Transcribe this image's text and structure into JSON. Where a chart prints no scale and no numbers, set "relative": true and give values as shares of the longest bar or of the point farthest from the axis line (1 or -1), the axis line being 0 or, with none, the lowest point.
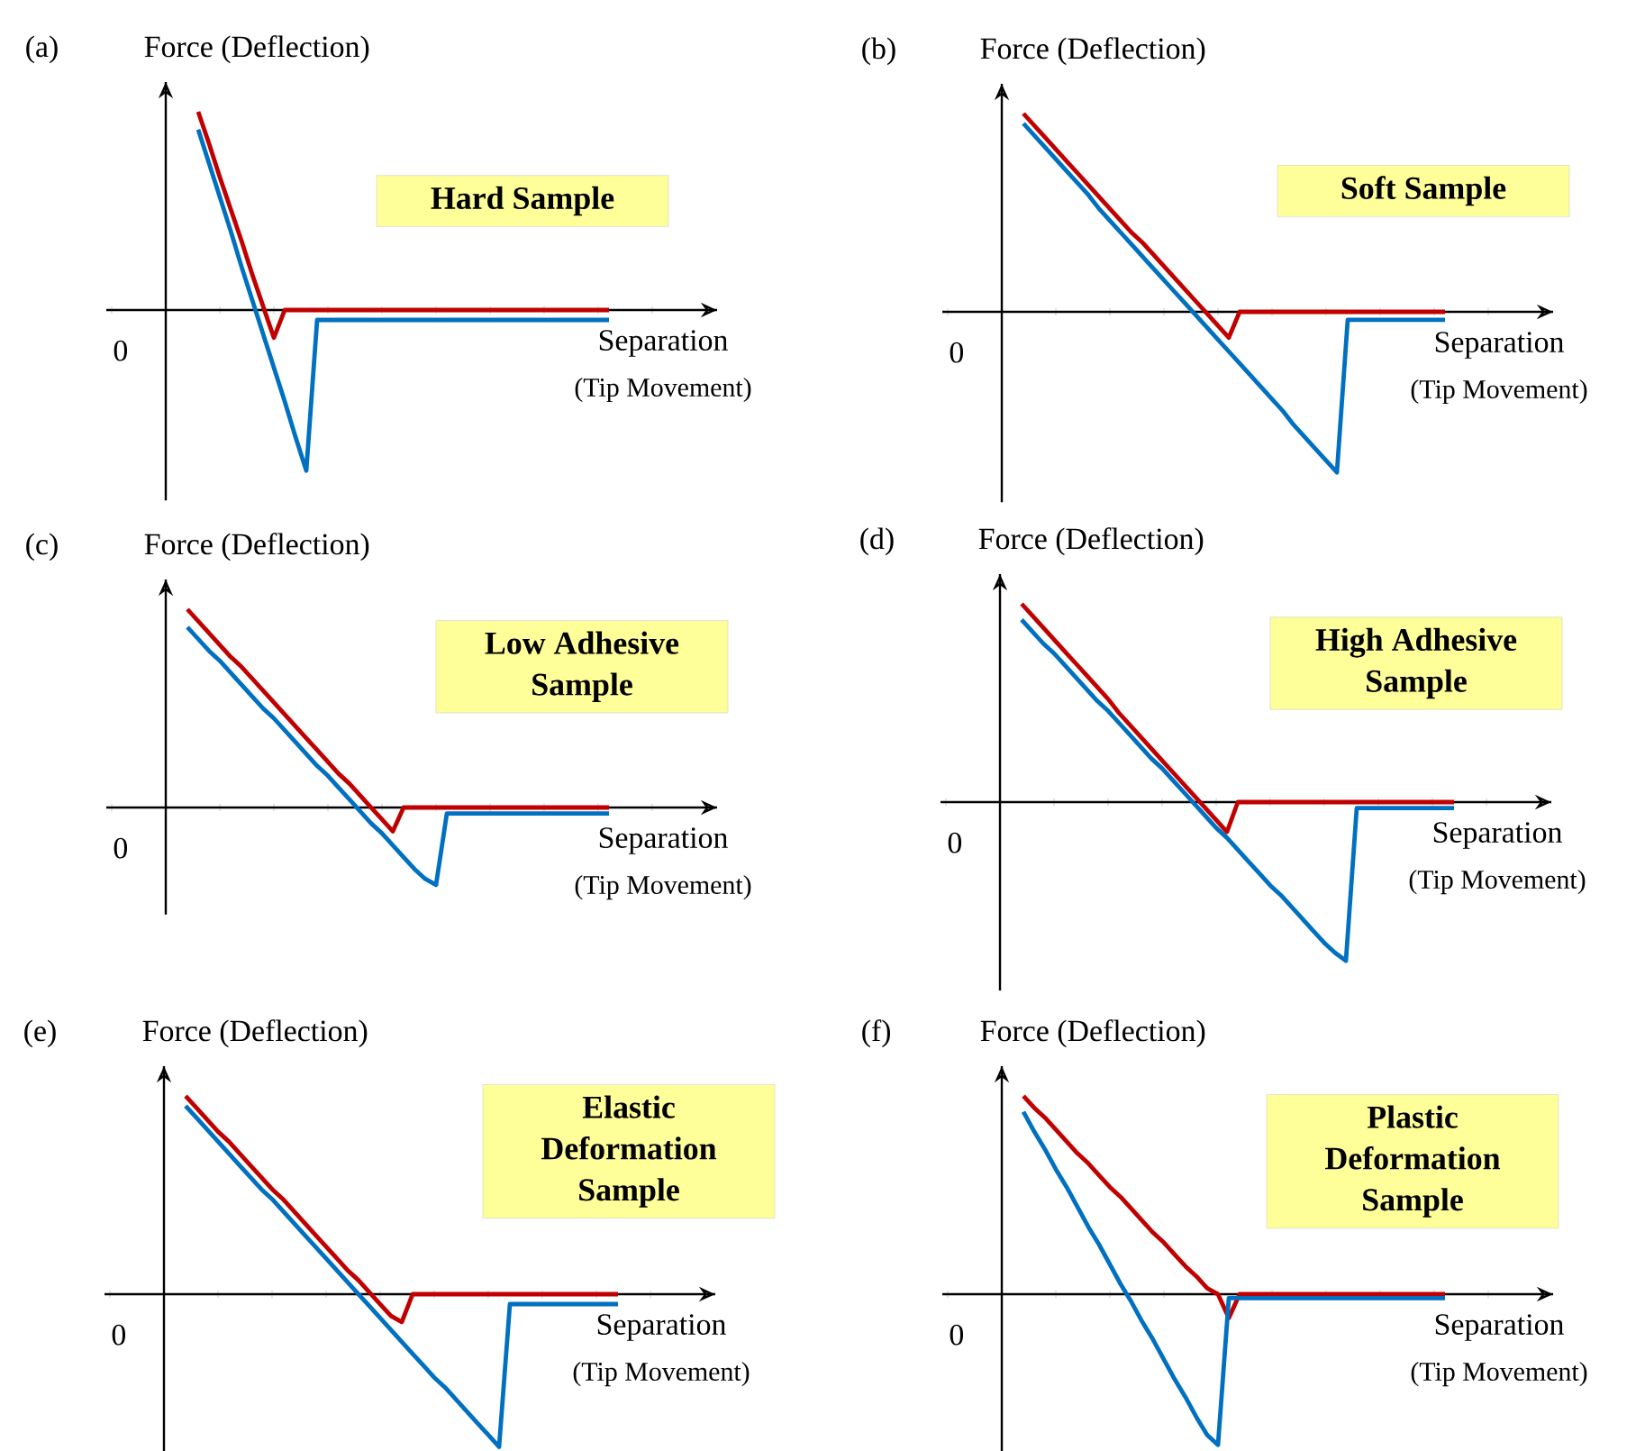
{
  "chart_data": [
    {
      "type": "line",
      "title": "(a)",
      "ylabel": "Force (Deflection)",
      "xlabel": "Separation",
      "annotations": [
        "Hard Sample",
        "0",
        "(Tip Movement)"
      ],
      "relative": true,
      "categories": [
        null,
        null,
        null,
        null,
        null,
        null,
        null,
        null,
        null,
        null,
        null,
        null,
        null,
        null,
        null,
        null,
        null,
        null,
        null,
        null,
        null,
        null,
        null,
        null,
        null,
        null,
        null,
        null,
        null,
        null,
        null,
        null,
        null,
        null,
        null,
        null,
        null,
        null,
        null,
        null,
        null,
        null
      ],
      "series": [
        {
          "color": "#c00000",
          "values": [
            null,
            null,
            1,
            0.84,
            0.67,
            0.51,
            0.35,
            0.18,
            0.02,
            -0.14,
            0,
            0,
            0,
            0,
            0,
            0,
            0,
            0,
            0,
            0,
            0,
            0,
            0,
            0,
            0,
            0,
            0,
            0,
            0,
            0,
            0,
            0,
            0,
            0,
            0,
            0,
            0,
            0,
            0,
            0,
            0,
            null
          ]
        },
        {
          "color": "#0070c0",
          "values": [
            null,
            null,
            0.91,
            0.74,
            0.57,
            0.4,
            0.22,
            0.05,
            -0.12,
            -0.29,
            -0.46,
            -0.64,
            -0.81,
            -0.05,
            -0.05,
            -0.05,
            -0.05,
            -0.05,
            -0.05,
            -0.05,
            -0.05,
            -0.05,
            -0.05,
            -0.05,
            -0.05,
            -0.05,
            -0.05,
            -0.05,
            -0.05,
            -0.05,
            -0.05,
            -0.05,
            -0.05,
            -0.05,
            -0.05,
            -0.05,
            -0.05,
            -0.05,
            -0.05,
            -0.05,
            -0.05,
            null
          ]
        }
      ]
    },
    {
      "type": "line",
      "title": "(b)",
      "ylabel": "Force (Deflection)",
      "xlabel": "Separation",
      "annotations": [
        "Soft Sample",
        "0",
        "(Tip Movement)"
      ],
      "relative": true,
      "categories": [
        null,
        null,
        null,
        null,
        null,
        null,
        null,
        null,
        null,
        null,
        null,
        null,
        null,
        null,
        null,
        null,
        null,
        null,
        null,
        null,
        null,
        null,
        null,
        null,
        null,
        null,
        null,
        null,
        null,
        null,
        null,
        null,
        null,
        null,
        null,
        null,
        null,
        null,
        null,
        null,
        null,
        null
      ],
      "series": [
        {
          "color": "#c00000",
          "values": [
            null,
            1,
            0.94,
            0.88,
            0.82,
            0.76,
            0.7,
            0.64,
            0.58,
            0.52,
            0.46,
            0.4,
            0.35,
            0.29,
            0.23,
            0.17,
            0.11,
            0.05,
            -0.01,
            -0.07,
            -0.13,
            0,
            0,
            0,
            0,
            0,
            0,
            0,
            0,
            0,
            0,
            0,
            0,
            0,
            0,
            0,
            0,
            0,
            0,
            0,
            0,
            null
          ]
        },
        {
          "color": "#0070c0",
          "values": [
            null,
            0.95,
            0.89,
            0.83,
            0.77,
            0.71,
            0.65,
            0.59,
            0.52,
            0.46,
            0.4,
            0.34,
            0.28,
            0.22,
            0.16,
            0.1,
            0.04,
            -0.02,
            -0.08,
            -0.14,
            -0.2,
            -0.26,
            -0.32,
            -0.38,
            -0.44,
            -0.5,
            -0.57,
            -0.63,
            -0.69,
            -0.75,
            -0.81,
            -0.04,
            -0.04,
            -0.04,
            -0.04,
            -0.04,
            -0.04,
            -0.04,
            -0.04,
            -0.04,
            -0.04,
            null
          ]
        }
      ]
    },
    {
      "type": "line",
      "title": "(c)",
      "ylabel": "Force (Deflection)",
      "xlabel": "Separation",
      "annotations": [
        "Low Adhesive Sample",
        "0",
        "(Tip Movement)"
      ],
      "relative": true,
      "categories": [
        null,
        null,
        null,
        null,
        null,
        null,
        null,
        null,
        null,
        null,
        null,
        null,
        null,
        null,
        null,
        null,
        null,
        null,
        null,
        null,
        null,
        null,
        null,
        null,
        null,
        null,
        null,
        null,
        null,
        null,
        null,
        null,
        null,
        null,
        null,
        null,
        null,
        null,
        null,
        null,
        null,
        null
      ],
      "series": [
        {
          "color": "#c00000",
          "values": [
            null,
            1,
            0.94,
            0.88,
            0.82,
            0.76,
            0.71,
            0.65,
            0.59,
            0.53,
            0.47,
            0.41,
            0.35,
            0.29,
            0.23,
            0.17,
            0.12,
            0.06,
            0,
            -0.06,
            -0.12,
            0,
            0,
            0,
            0,
            0,
            0,
            0,
            0,
            0,
            0,
            0,
            0,
            0,
            0,
            0,
            0,
            0,
            0,
            0,
            0,
            null
          ]
        },
        {
          "color": "#0070c0",
          "values": [
            null,
            0.91,
            0.85,
            0.79,
            0.74,
            0.68,
            0.62,
            0.56,
            0.5,
            0.45,
            0.39,
            0.33,
            0.27,
            0.21,
            0.16,
            0.1,
            0.04,
            -0.02,
            -0.08,
            -0.13,
            -0.19,
            -0.25,
            -0.31,
            -0.36,
            -0.39,
            -0.03,
            -0.03,
            -0.03,
            -0.03,
            -0.03,
            -0.03,
            -0.03,
            -0.03,
            -0.03,
            -0.03,
            -0.03,
            -0.03,
            -0.03,
            -0.03,
            -0.03,
            -0.03,
            null
          ]
        }
      ]
    },
    {
      "type": "line",
      "title": "(d)",
      "ylabel": "Force (Deflection)",
      "xlabel": "Separation",
      "annotations": [
        "High Adhesive Sample",
        "0",
        "(Tip Movement)"
      ],
      "relative": true,
      "categories": [
        null,
        null,
        null,
        null,
        null,
        null,
        null,
        null,
        null,
        null,
        null,
        null,
        null,
        null,
        null,
        null,
        null,
        null,
        null,
        null,
        null,
        null,
        null,
        null,
        null,
        null,
        null,
        null,
        null,
        null,
        null,
        null,
        null,
        null,
        null,
        null,
        null,
        null,
        null,
        null,
        null,
        null
      ],
      "series": [
        {
          "color": "#c00000",
          "values": [
            null,
            1,
            0.94,
            0.88,
            0.82,
            0.76,
            0.7,
            0.64,
            0.58,
            0.52,
            0.45,
            0.39,
            0.33,
            0.27,
            0.21,
            0.15,
            0.09,
            0.03,
            -0.03,
            -0.09,
            -0.15,
            0,
            0,
            0,
            0,
            0,
            0,
            0,
            0,
            0,
            0,
            0,
            0,
            0,
            0,
            0,
            0,
            0,
            0,
            0,
            0,
            0
          ]
        },
        {
          "color": "#0070c0",
          "values": [
            null,
            0.92,
            0.86,
            0.8,
            0.75,
            0.69,
            0.63,
            0.57,
            0.51,
            0.46,
            0.4,
            0.34,
            0.28,
            0.22,
            0.17,
            0.11,
            0.05,
            -0.01,
            -0.07,
            -0.13,
            -0.18,
            -0.24,
            -0.3,
            -0.36,
            -0.42,
            -0.47,
            -0.53,
            -0.59,
            -0.65,
            -0.71,
            -0.76,
            -0.8,
            -0.03,
            -0.03,
            -0.03,
            -0.03,
            -0.03,
            -0.03,
            -0.03,
            -0.03,
            -0.03,
            -0.03
          ]
        }
      ]
    },
    {
      "type": "line",
      "title": "(e)",
      "ylabel": "Force (Deflection)",
      "xlabel": "Separation",
      "annotations": [
        "Elastic Deformation Sample",
        "0",
        "(Tip Movement)"
      ],
      "relative": true,
      "categories": [
        null,
        null,
        null,
        null,
        null,
        null,
        null,
        null,
        null,
        null,
        null,
        null,
        null,
        null,
        null,
        null,
        null,
        null,
        null,
        null,
        null,
        null,
        null,
        null,
        null,
        null,
        null,
        null,
        null,
        null,
        null,
        null,
        null,
        null,
        null,
        null,
        null,
        null,
        null,
        null,
        null,
        null
      ],
      "series": [
        {
          "color": "#c00000",
          "values": [
            null,
            1,
            0.94,
            0.88,
            0.82,
            0.77,
            0.71,
            0.65,
            0.59,
            0.53,
            0.48,
            0.42,
            0.36,
            0.3,
            0.24,
            0.18,
            0.12,
            0.07,
            0.01,
            -0.05,
            -0.11,
            -0.14,
            0,
            0,
            0,
            0,
            0,
            0,
            0,
            0,
            0,
            0,
            0,
            0,
            0,
            0,
            0,
            0,
            0,
            0,
            0,
            0
          ]
        },
        {
          "color": "#0070c0",
          "values": [
            null,
            0.95,
            0.89,
            0.83,
            0.77,
            0.71,
            0.65,
            0.59,
            0.53,
            0.48,
            0.42,
            0.36,
            0.3,
            0.24,
            0.18,
            0.12,
            0.06,
            0,
            -0.06,
            -0.12,
            -0.18,
            -0.24,
            -0.3,
            -0.36,
            -0.42,
            -0.47,
            -0.53,
            -0.59,
            -0.65,
            -0.71,
            -0.77,
            -0.05,
            -0.05,
            -0.05,
            -0.05,
            -0.05,
            -0.05,
            -0.05,
            -0.05,
            -0.05,
            -0.05,
            -0.05
          ]
        }
      ]
    },
    {
      "type": "line",
      "title": "(f)",
      "ylabel": "Force (Deflection)",
      "xlabel": "Separation",
      "annotations": [
        "Plastic Deformation Sample",
        "0",
        "(Tip Movement)"
      ],
      "relative": true,
      "categories": [
        null,
        null,
        null,
        null,
        null,
        null,
        null,
        null,
        null,
        null,
        null,
        null,
        null,
        null,
        null,
        null,
        null,
        null,
        null,
        null,
        null,
        null,
        null,
        null,
        null,
        null,
        null,
        null,
        null,
        null,
        null,
        null,
        null,
        null,
        null,
        null,
        null,
        null,
        null,
        null,
        null,
        null
      ],
      "series": [
        {
          "color": "#c00000",
          "values": [
            null,
            1,
            0.94,
            0.89,
            0.83,
            0.77,
            0.71,
            0.66,
            0.6,
            0.54,
            0.49,
            0.43,
            0.37,
            0.31,
            0.26,
            0.2,
            0.14,
            0.09,
            0.03,
            0,
            -0.12,
            0,
            0,
            0,
            0,
            0,
            0,
            0,
            0,
            0,
            0,
            0,
            0,
            0,
            0,
            0,
            0,
            0,
            0,
            0,
            0,
            null
          ]
        },
        {
          "color": "#0070c0",
          "values": [
            null,
            0.92,
            0.82,
            0.73,
            0.63,
            0.54,
            0.44,
            0.34,
            0.25,
            0.15,
            0.05,
            -0.04,
            -0.14,
            -0.23,
            -0.33,
            -0.43,
            -0.52,
            -0.62,
            -0.71,
            -0.76,
            -0.02,
            -0.02,
            -0.02,
            -0.02,
            -0.02,
            -0.02,
            -0.02,
            -0.02,
            -0.02,
            -0.02,
            -0.02,
            -0.02,
            -0.02,
            -0.02,
            -0.02,
            -0.02,
            -0.02,
            -0.02,
            -0.02,
            -0.02,
            -0.02,
            null
          ]
        }
      ]
    }
  ]
}
